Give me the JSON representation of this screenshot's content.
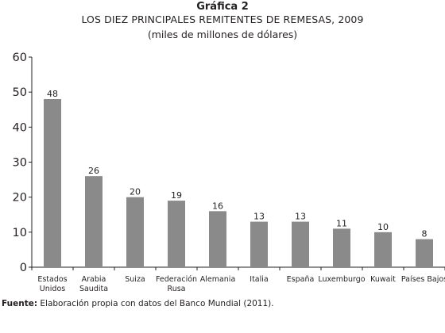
{
  "chart_data": {
    "type": "bar",
    "heading": "Gráfica 2",
    "title": "LOS DIEZ PRINCIPALES REMITENTES DE REMESAS, 2009",
    "subtitle": "(miles de millones de dólares)",
    "categories": [
      [
        "Estados",
        "Unidos"
      ],
      [
        "Arabia",
        "Saudita"
      ],
      [
        "Suiza"
      ],
      [
        "Federación",
        "Rusa"
      ],
      [
        "Alemania"
      ],
      [
        "Italia"
      ],
      [
        "España"
      ],
      [
        "Luxemburgo"
      ],
      [
        "Kuwait"
      ],
      [
        "Países Bajos"
      ]
    ],
    "values": [
      48,
      26,
      20,
      19,
      16,
      13,
      13,
      11,
      10,
      8
    ],
    "data_labels": [
      "48",
      "26",
      "20",
      "19",
      "16",
      "13",
      "13",
      "11",
      "10",
      "8"
    ],
    "yticks": [
      0,
      10,
      20,
      30,
      40,
      50,
      60
    ],
    "ylim": [
      0,
      60
    ],
    "xlabel": "",
    "ylabel": "",
    "grid": false,
    "bar_color": "#8a8a8a"
  },
  "footer": {
    "label": "Fuente:",
    "text": " Elaboración propia con datos del Banco Mundial (2011)."
  }
}
